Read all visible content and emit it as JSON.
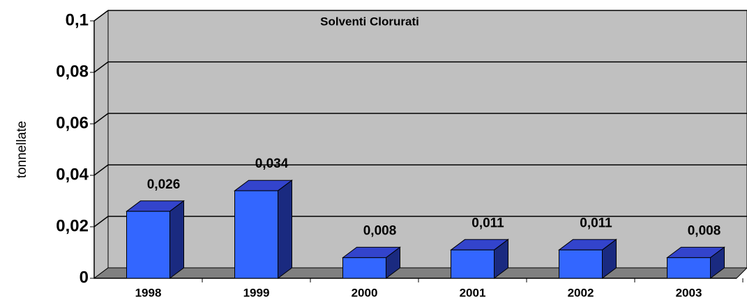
{
  "chart_data": {
    "type": "bar3d",
    "title": "Solventi Clorurati",
    "y_label": "tonnellate",
    "categories": [
      "1998",
      "1999",
      "2000",
      "2001",
      "2002",
      "2003"
    ],
    "values": [
      0.026,
      0.034,
      0.008,
      0.011,
      0.011,
      0.008
    ],
    "value_labels": [
      "0,026",
      "0,034",
      "0,008",
      "0,011",
      "0,011",
      "0,008"
    ],
    "color": "#3366ff",
    "ylim": [
      0,
      0.1
    ],
    "yticks": [
      0,
      {
        "value": 0.02,
        "label": "0,02"
      },
      {
        "value": 0.04,
        "label": "0,04"
      },
      {
        "value": 0.06,
        "label": "0,06"
      },
      {
        "value": 0.08,
        "label": "0,08"
      },
      {
        "value": 0.1,
        "label": "0,1"
      }
    ],
    "grid": true
  }
}
